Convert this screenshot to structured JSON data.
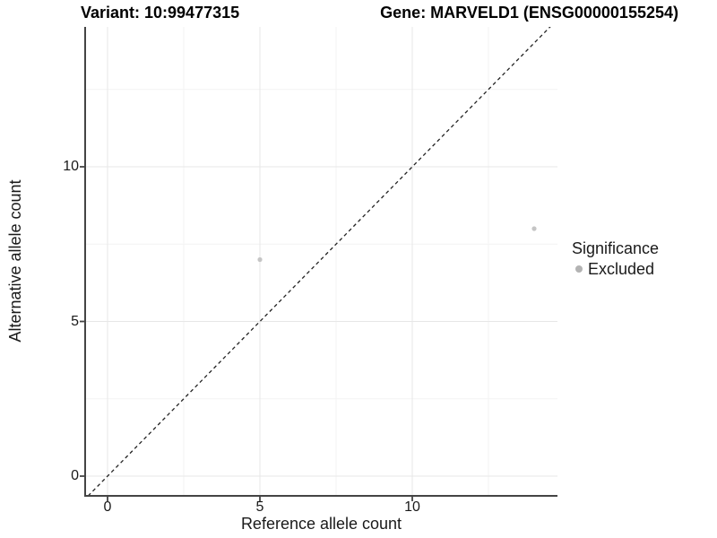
{
  "titles": {
    "variant": "Variant: 10:99477315",
    "gene": "Gene: MARVELD1 (ENSG00000155254)"
  },
  "axes": {
    "x_label": "Reference allele count",
    "y_label": "Alternative allele count"
  },
  "legend": {
    "title": "Significance",
    "items": [
      {
        "label": "Excluded",
        "color": "#b3b3b3"
      }
    ]
  },
  "chart_data": {
    "type": "scatter",
    "title": "Variant: 10:99477315   Gene: MARVELD1 (ENSG00000155254)",
    "xlabel": "Reference allele count",
    "ylabel": "Alternative allele count",
    "xlim": [
      -0.75,
      14.8
    ],
    "ylim": [
      -0.65,
      14.55
    ],
    "x_ticks": [
      0,
      5,
      10
    ],
    "y_ticks": [
      0,
      5,
      10
    ],
    "x_minor_ticks": [
      2.5,
      7.5,
      12.5
    ],
    "y_minor_ticks": [
      2.5,
      7.5,
      12.5
    ],
    "grid": "major+minor",
    "legend_position": "right",
    "identity_line": {
      "style": "dashed",
      "slope": 1,
      "intercept": 0
    },
    "series": [
      {
        "name": "Excluded",
        "points": [
          {
            "x": 5,
            "y": 7
          },
          {
            "x": 14,
            "y": 8
          }
        ]
      }
    ],
    "colors": {
      "point": "#c5c5c5",
      "legend_point": "#b3b3b3",
      "major_grid": "#e7e7e7",
      "minor_grid": "#f3f3f3",
      "axis_line": "#444444",
      "dashed_line": "#222222",
      "text": "#1a1a1a"
    }
  }
}
